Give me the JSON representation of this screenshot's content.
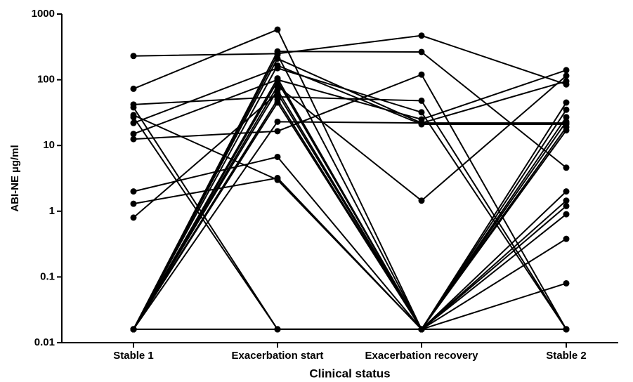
{
  "chart_data": {
    "type": "line",
    "x_label": "Clinical status",
    "y_label": "ABI-NE µg/ml",
    "categories": [
      "Stable 1",
      "Exacerbation start",
      "Exacerbation recovery",
      "Stable 2"
    ],
    "yscale": "log",
    "ylim": [
      0.01,
      1000
    ],
    "yticks": [
      0.01,
      0.1,
      1,
      10,
      100,
      1000
    ],
    "color": "#000000",
    "series": [
      {
        "values": [
          230,
          250,
          470,
          85
        ]
      },
      {
        "values": [
          73,
          580,
          0.016,
          19
        ]
      },
      {
        "values": [
          42,
          55,
          48,
          0.016
        ]
      },
      {
        "values": [
          38,
          0.016,
          0.016,
          0.016
        ]
      },
      {
        "values": [
          29,
          3,
          0.016,
          23
        ]
      },
      {
        "values": [
          27,
          0.016,
          0.016,
          35
        ]
      },
      {
        "values": [
          22,
          150,
          32,
          0.016
        ]
      },
      {
        "values": [
          15,
          100,
          25,
          140
        ]
      },
      {
        "values": [
          12.5,
          16.5,
          120,
          0.016
        ]
      },
      {
        "values": [
          2,
          6.7,
          0.016,
          0.9
        ]
      },
      {
        "values": [
          1.3,
          3.2,
          0.016,
          1.2
        ]
      },
      {
        "values": [
          0.8,
          62,
          0.016,
          0.38
        ]
      },
      {
        "values": [
          0.016,
          270,
          265,
          4.6
        ]
      },
      {
        "values": [
          0.016,
          210,
          22,
          95
        ]
      },
      {
        "values": [
          0.016,
          165,
          21,
          21
        ]
      },
      {
        "values": [
          0.016,
          80,
          1.45,
          115
        ]
      },
      {
        "values": [
          0.016,
          70,
          0.016,
          45
        ]
      },
      {
        "values": [
          0.016,
          50,
          0.016,
          17
        ]
      },
      {
        "values": [
          0.016,
          45,
          0.016,
          2
        ]
      },
      {
        "values": [
          0.016,
          23,
          22,
          22
        ]
      },
      {
        "values": [
          0.016,
          95,
          0.016,
          1.45
        ]
      },
      {
        "values": [
          0.016,
          105,
          0.016,
          0.08
        ]
      },
      {
        "values": [
          0.016,
          0.016,
          0.016,
          0.016
        ]
      },
      {
        "values": [
          0.016,
          240,
          0.016,
          27
        ]
      }
    ]
  }
}
